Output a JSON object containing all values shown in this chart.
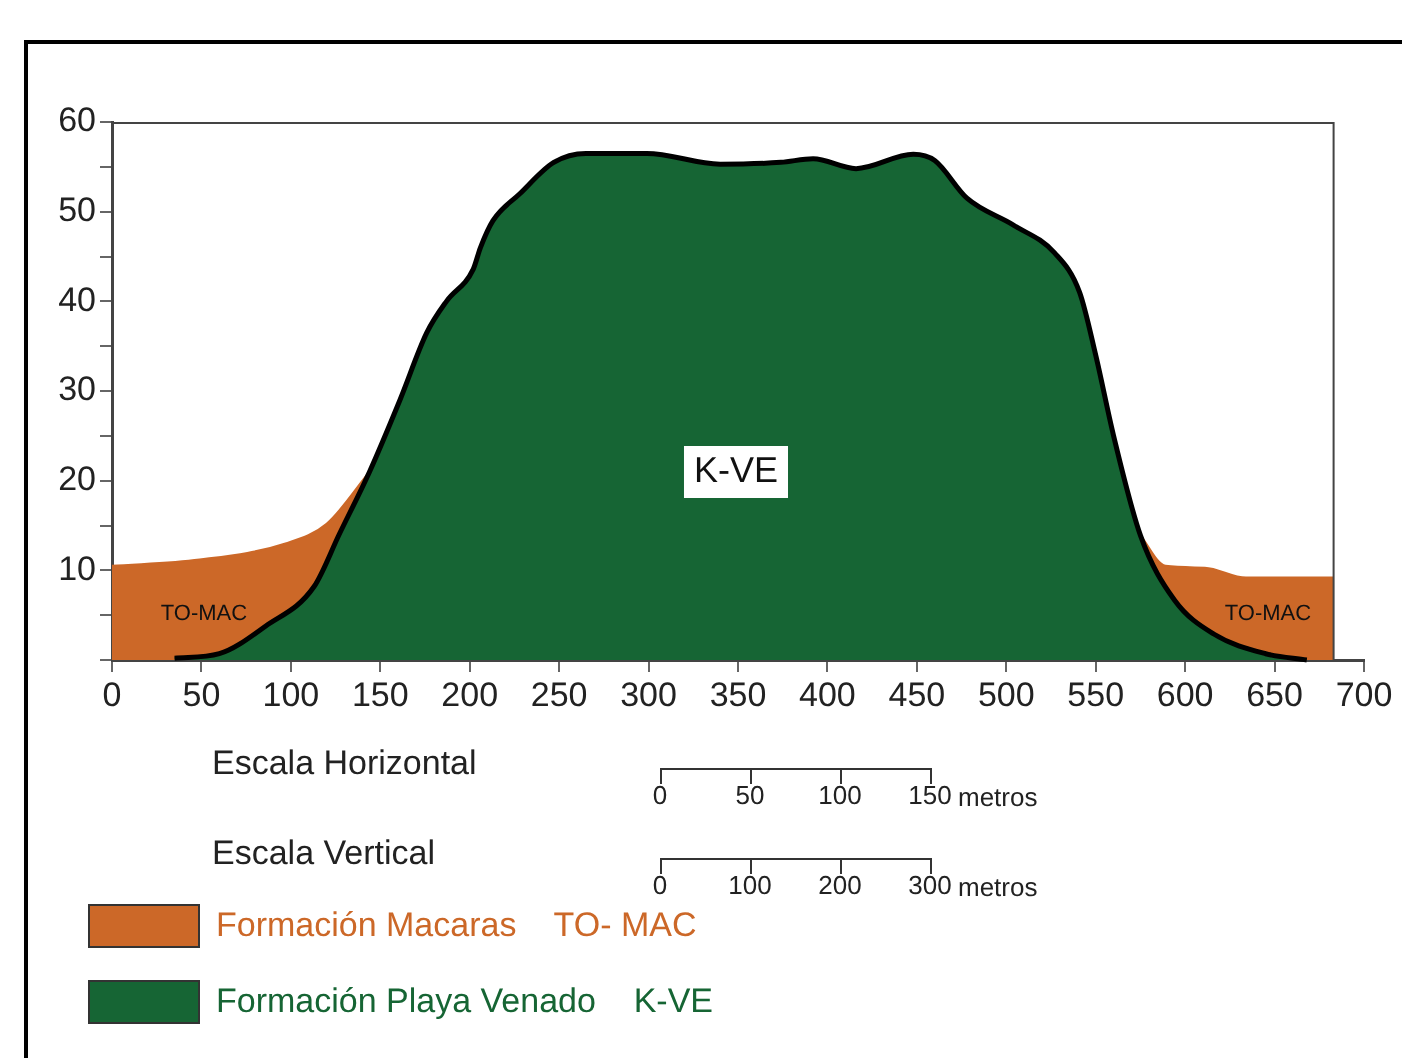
{
  "chart_data": {
    "type": "area",
    "xlim": [
      0,
      700
    ],
    "ylim": [
      0,
      60
    ],
    "xticks": [
      0,
      50,
      100,
      150,
      200,
      250,
      300,
      350,
      400,
      450,
      500,
      550,
      600,
      650,
      700
    ],
    "yticks": [
      {
        "value": 0,
        "label": null
      },
      {
        "value": 5,
        "label": null
      },
      10,
      {
        "value": 15,
        "label": null
      },
      20,
      {
        "value": 25,
        "label": null
      },
      30,
      {
        "value": 35,
        "label": null
      },
      40,
      {
        "value": 45,
        "label": null
      },
      50,
      {
        "value": 55,
        "label": null
      },
      60
    ],
    "grid": false,
    "legend": "bottom",
    "line_style": "solid",
    "marker": "none",
    "series": [
      {
        "name": "Formación Macaras    TO- MAC",
        "color": "#cc6828",
        "x": [
          0,
          49,
          97,
          120,
          144,
          160,
          575,
          589,
          611,
          634,
          683
        ],
        "values": [
          10.5,
          11.2,
          13,
          15.2,
          21,
          null,
          13.9,
          10.5,
          10.3,
          9.2,
          9.2
        ]
      },
      {
        "name": "Formación Playa Venado    K-VE",
        "color": "#166534",
        "x": [
          35,
          60,
          86,
          113,
          127,
          144,
          161,
          176,
          187,
          202,
          206,
          213,
          228,
          247,
          265,
          299,
          340,
          374,
          392,
          416,
          448,
          460,
          478,
          504,
          527,
          541,
          550,
          560,
          575,
          594,
          616,
          645,
          668
        ],
        "values": [
          0.2,
          0.7,
          3.8,
          8.2,
          14,
          21,
          29,
          36.5,
          40,
          43.6,
          46,
          49,
          52,
          55.5,
          56.5,
          56.5,
          55.3,
          55.5,
          55.9,
          54.8,
          56.4,
          55.7,
          51.5,
          48.5,
          45.4,
          41,
          34,
          25,
          13.9,
          6.7,
          2.9,
          0.7,
          0
        ]
      }
    ],
    "annotations": [
      "TO-MAC",
      "K-VE",
      "TO-MAC",
      "Escala Horizontal",
      "0 50 100 150 metros",
      "Escala Vertical",
      "0 100 200 300 metros"
    ]
  }
}
